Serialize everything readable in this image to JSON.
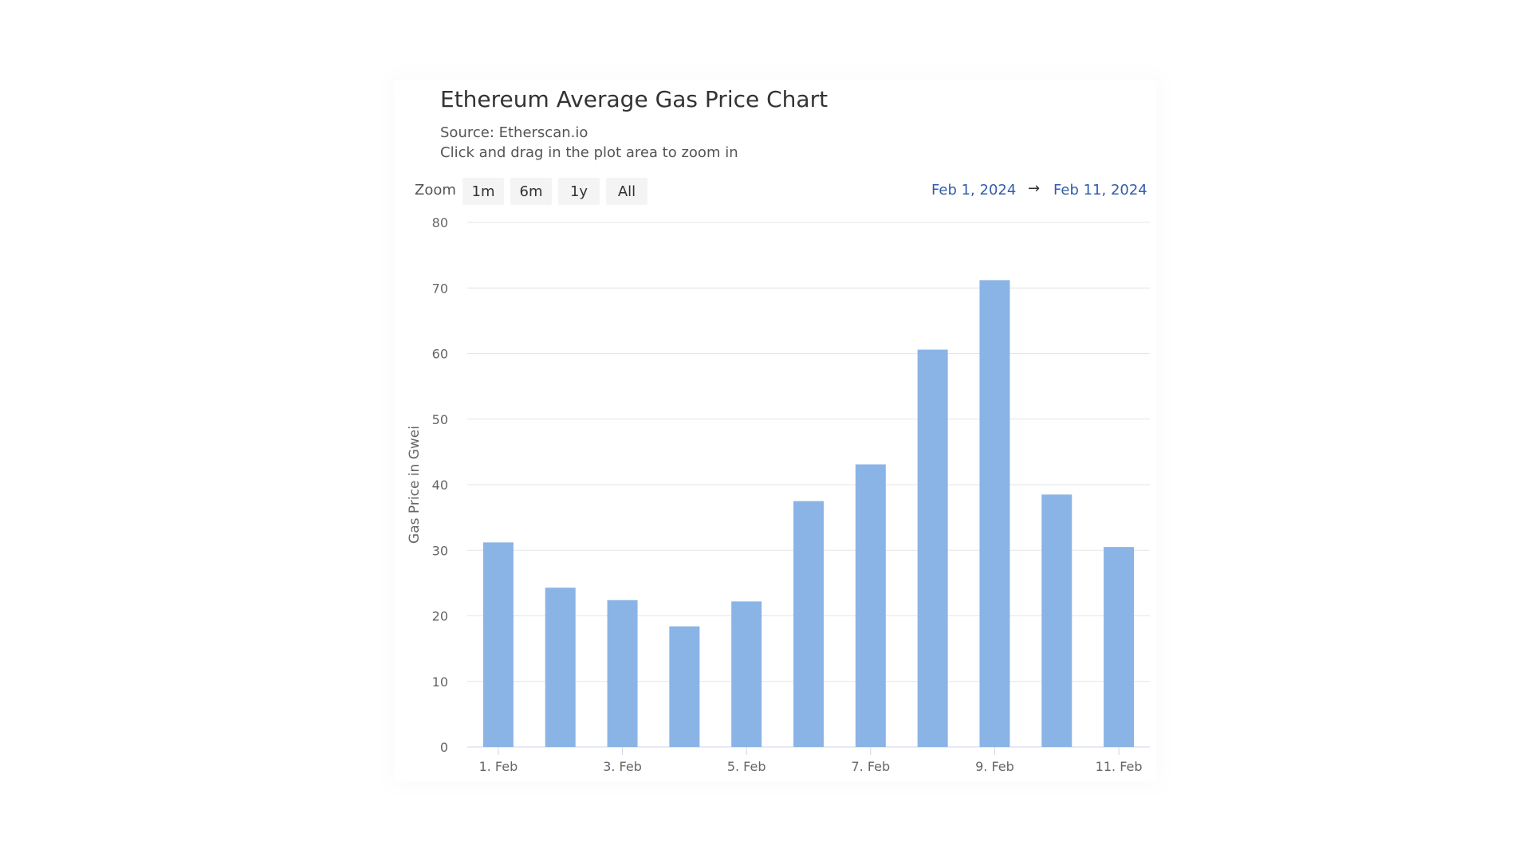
{
  "header": {
    "title": "Ethereum Average Gas Price Chart",
    "source": "Source: Etherscan.io",
    "hint": "Click and drag in the plot area to zoom in"
  },
  "zoom": {
    "label": "Zoom",
    "buttons": [
      "1m",
      "6m",
      "1y",
      "All"
    ]
  },
  "range": {
    "from": "Feb 1, 2024",
    "arrow": "→",
    "to": "Feb 11, 2024"
  },
  "colors": {
    "bar": "#8ab4e6",
    "grid": "#e6e6e6",
    "range_link": "#335cad"
  },
  "chart_data": {
    "type": "bar",
    "title": "Ethereum Average Gas Price Chart",
    "subtitle": "Source: Etherscan.io",
    "ylabel": "Gas Price in Gwei",
    "xlabel": "",
    "categories": [
      "1. Feb",
      "2. Feb",
      "3. Feb",
      "4. Feb",
      "5. Feb",
      "6. Feb",
      "7. Feb",
      "8. Feb",
      "9. Feb",
      "10. Feb",
      "11. Feb"
    ],
    "x_tick_labels": [
      "1. Feb",
      "3. Feb",
      "5. Feb",
      "7. Feb",
      "9. Feb",
      "11. Feb"
    ],
    "values": [
      31.2,
      24.3,
      22.4,
      18.4,
      22.2,
      37.5,
      43.1,
      60.6,
      71.2,
      38.5,
      30.5
    ],
    "ylim": [
      0,
      80
    ],
    "y_ticks": [
      0,
      10,
      20,
      30,
      40,
      50,
      60,
      70,
      80
    ],
    "grid": true,
    "legend": false
  }
}
